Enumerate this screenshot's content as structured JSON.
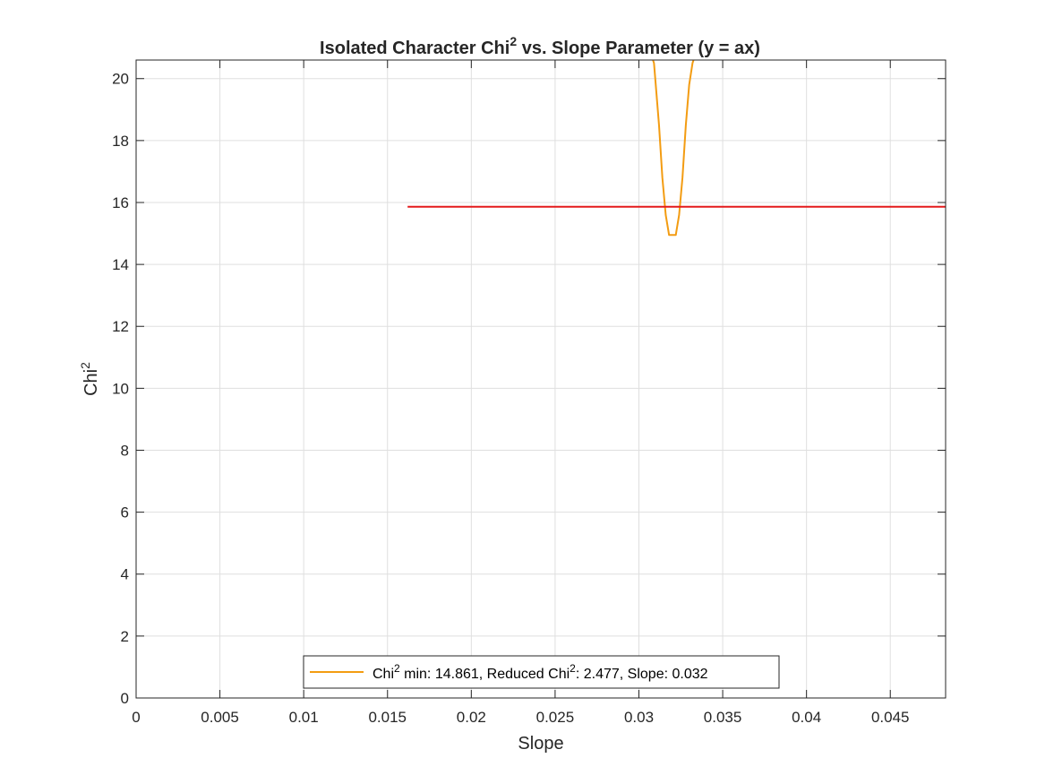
{
  "chart_data": {
    "type": "line",
    "title": {
      "prefix": "Isolated Character Chi",
      "sup": "2",
      "suffix": " vs. Slope Parameter (y = ax)"
    },
    "xlabel": "Slope",
    "ylabel": {
      "base": "Chi",
      "sup": "2"
    },
    "xlim": [
      0,
      0.0483
    ],
    "ylim": [
      0,
      20.6
    ],
    "x_ticks": [
      0,
      0.005,
      0.01,
      0.015,
      0.02,
      0.025,
      0.03,
      0.035,
      0.04,
      0.045
    ],
    "x_tick_labels": [
      "0",
      "0.005",
      "0.01",
      "0.015",
      "0.02",
      "0.025",
      "0.03",
      "0.035",
      "0.04",
      "0.045"
    ],
    "y_ticks": [
      0,
      2,
      4,
      6,
      8,
      10,
      12,
      14,
      16,
      18,
      20
    ],
    "y_tick_labels": [
      "0",
      "2",
      "4",
      "6",
      "8",
      "10",
      "12",
      "14",
      "16",
      "18",
      "20"
    ],
    "grid": true,
    "legend_position": "bottom-center",
    "series": [
      {
        "name": {
          "p1": "Chi",
          "s1": "2",
          "p2": " min: 14.861, Reduced Chi",
          "s2": "2",
          "p3": ": 2.477, Slope: 0.032"
        },
        "color": "#F39C12",
        "x": [
          0.0306,
          0.0309,
          0.0312,
          0.0314,
          0.0316,
          0.0318,
          0.032,
          0.0322,
          0.0324,
          0.0326,
          0.0328,
          0.033,
          0.0332,
          0.0335
        ],
        "y": [
          21.0,
          20.5,
          18.5,
          16.8,
          15.6,
          14.95,
          14.95,
          14.95,
          15.6,
          16.8,
          18.5,
          19.8,
          20.5,
          21.0
        ]
      },
      {
        "color": "#E41A1C",
        "x": [
          0.0162,
          0.0483
        ],
        "y": [
          15.861,
          15.861
        ]
      }
    ]
  }
}
